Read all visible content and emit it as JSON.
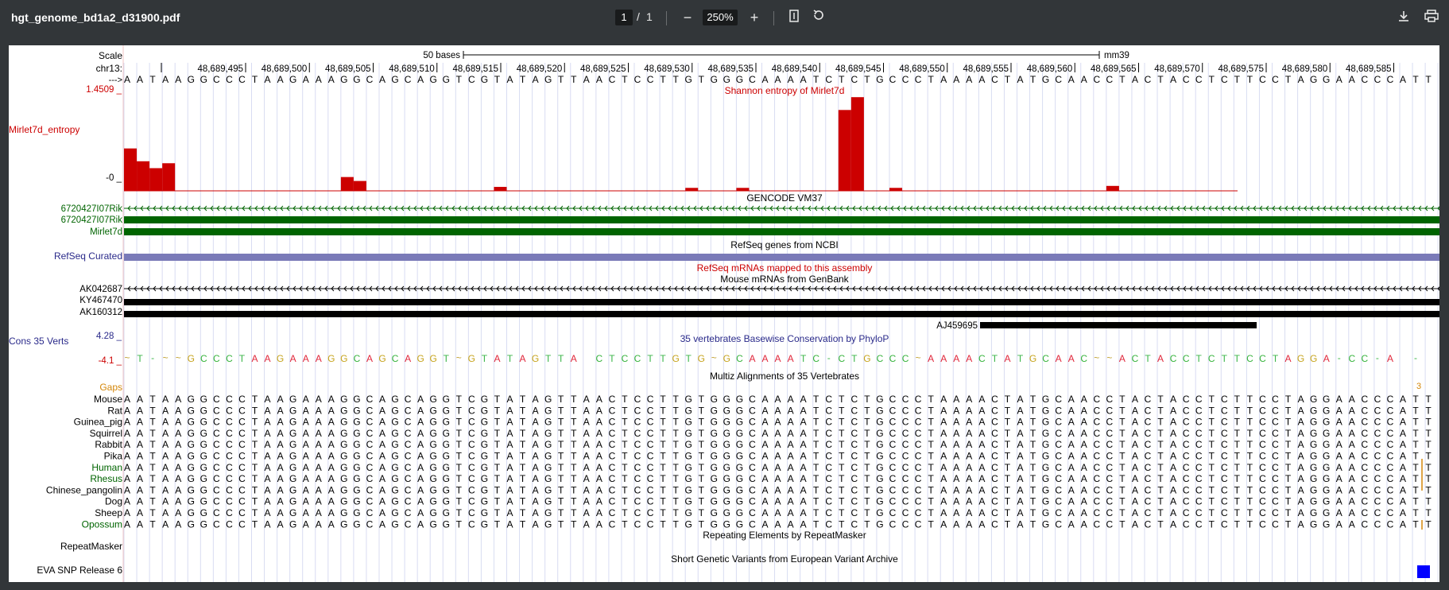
{
  "toolbar": {
    "filename": "hgt_genome_bd1a2_d31900.pdf",
    "page_current": "1",
    "page_sep": "/",
    "page_total": "1",
    "zoom": "250%",
    "icons": [
      "zoom-out-icon",
      "zoom-in-icon",
      "fit-page-icon",
      "rotate-icon",
      "download-icon",
      "print-icon"
    ]
  },
  "browser": {
    "scale_label": "Scale",
    "scale_bar_label": "50 bases",
    "assembly": "mm39",
    "chrom_label": "chr13:",
    "strand_label": "--->",
    "positions": [
      "48,689,495",
      "48,689,500",
      "48,689,505",
      "48,689,510",
      "48,689,515",
      "48,689,520",
      "48,689,525",
      "48,689,530",
      "48,689,535",
      "48,689,540",
      "48,689,545",
      "48,689,550",
      "48,689,555",
      "48,689,560",
      "48,689,565",
      "48,689,570",
      "48,689,575",
      "48,689,580",
      "48,689,585"
    ],
    "base_sequence": "AATAAGGCCCTAAGAAAGGCAGCAGGTCGTATAGTTAACTCCTTGTGGGCAAAATCTCTGCCCTAAAACTATGCAACCTACTACCTCTTCCTAGGAACCCATT",
    "entropy": {
      "label": "Mirlet7d_entropy",
      "max": "1.4509 _",
      "min": "-0 _",
      "title": "Shannon entropy of Mirlet7d",
      "color": "#cc0000",
      "values": [
        0.43,
        0.3,
        0.23,
        0.28,
        0,
        0,
        0,
        0,
        0,
        0,
        0,
        0,
        0,
        0,
        0,
        0,
        0,
        0.14,
        0.1,
        0,
        0,
        0,
        0,
        0,
        0,
        0,
        0,
        0,
        0,
        0.04,
        0,
        0,
        0,
        0,
        0,
        0,
        0,
        0,
        0,
        0,
        0,
        0,
        0,
        0,
        0.03,
        0,
        0,
        0,
        0.03,
        0,
        0,
        0,
        0,
        0,
        0,
        0,
        0.82,
        0.95,
        0,
        0,
        0.03,
        0,
        0,
        0,
        0,
        0,
        0,
        0,
        0,
        0,
        0,
        0,
        0,
        0,
        0,
        0,
        0,
        0.05,
        0,
        0,
        0,
        0,
        0,
        0,
        0,
        0,
        0,
        0,
        0
      ]
    },
    "gencode": {
      "title": "GENCODE VM37",
      "tracks": [
        "6720427I07Rik",
        "6720427I07Rik",
        "Mirlet7d"
      ],
      "color": "#006400"
    },
    "refseq": {
      "title": "RefSeq genes from NCBI",
      "label": "RefSeq Curated",
      "color": "#7a7ab8"
    },
    "refseq_mrna_title": "RefSeq mRNAs mapped to this assembly",
    "mrna": {
      "title": "Mouse mRNAs from GenBank",
      "tracks": [
        "AK042687",
        "KY467470",
        "AK160312"
      ],
      "extra": "AJ459695"
    },
    "cons": {
      "label": "Cons 35 Verts",
      "max": "4.28 _",
      "min": "-4.1 _",
      "title": "35 vertebrates Basewise Conservation by PhyloP",
      "seq": "~T-~~GCCCTAAGAAAGGCAGCAGGT~GTATAGTTA CTCCTTGTG~GCAAAATC-CTGCCC~AAAACTATGCAAC~~ACTACCTCTTCCTAGGA-CC-A -"
    },
    "multiz": {
      "title": "Multiz Alignments of 35 Vertebrates",
      "gaps_label": "Gaps",
      "gap_count": "3",
      "species": [
        {
          "name": "Mouse",
          "color": "#000000"
        },
        {
          "name": "Rat",
          "color": "#000000"
        },
        {
          "name": "Guinea_pig",
          "color": "#000000"
        },
        {
          "name": "Squirrel",
          "color": "#000000"
        },
        {
          "name": "Rabbit",
          "color": "#000000"
        },
        {
          "name": "Pika",
          "color": "#000000"
        },
        {
          "name": "Human",
          "color": "#006400"
        },
        {
          "name": "Rhesus",
          "color": "#006400"
        },
        {
          "name": "Chinese_pangolin",
          "color": "#000000"
        },
        {
          "name": "Dog",
          "color": "#000000"
        },
        {
          "name": "Sheep",
          "color": "#000000"
        },
        {
          "name": "Opossum",
          "color": "#006400"
        }
      ]
    },
    "repeatmasker": {
      "title": "Repeating Elements by RepeatMasker",
      "label": "RepeatMasker"
    },
    "eva": {
      "title": "Short Genetic Variants from European Variant Archive",
      "label": "EVA SNP Release 6",
      "color": "#0000ff"
    }
  }
}
